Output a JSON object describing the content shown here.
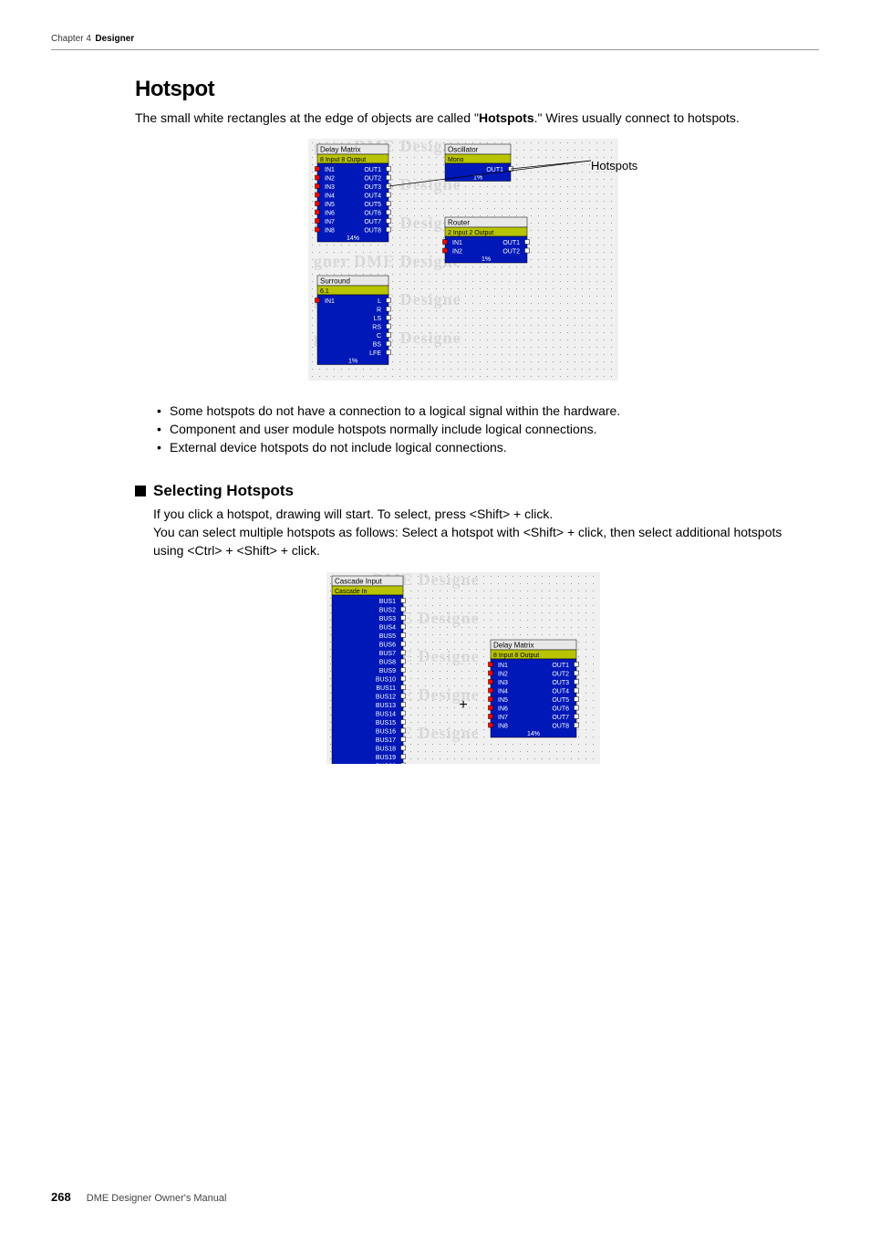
{
  "header": {
    "chapter_label": "Chapter 4",
    "chapter_name": "Designer"
  },
  "title": "Hotspot",
  "intro_pre": "The small white rectangles at the edge of objects are called \"",
  "intro_bold": "Hotspots",
  "intro_post": ".\" Wires usually connect to hotspots.",
  "callout_label": "Hotspots",
  "bullets": [
    "Some hotspots do not have a connection to a logical signal within the hardware.",
    "Component and user module hotspots normally include logical connections.",
    "External device hotspots do not include logical connections."
  ],
  "subheading": "Selecting Hotspots",
  "sub_body_1": "If you click a hotspot, drawing will start. To select, press <Shift> + click.",
  "sub_body_2": "You can select multiple hotspots as follows: Select a hotspot with <Shift> + click, then select additional hotspots using <Ctrl> + <Shift> + click.",
  "footer": {
    "page": "268",
    "manual": "DME Designer Owner's Manual"
  },
  "fig1": {
    "bg": "#f0f0f0",
    "watermark": "#d8d8d8",
    "panel_fill": "#0018b8",
    "panel_stroke": "#000",
    "title_bar": "#e8e8e8",
    "title_text": "#000",
    "subtitle_fill": "#b8c400",
    "port_text": "#ffffff",
    "hotspot_fill": "#ffffff",
    "hotspot_stroke": "#000",
    "sel_hotspot": "#ff0000",
    "delay_matrix": {
      "title": "Delay Matrix",
      "sub": "8 Input 8 Output",
      "ins": [
        "IN1",
        "IN2",
        "IN3",
        "IN4",
        "IN5",
        "IN6",
        "IN7",
        "IN8"
      ],
      "outs": [
        "OUT1",
        "OUT2",
        "OUT3",
        "OUT4",
        "OUT5",
        "OUT6",
        "OUT7",
        "OUT8"
      ],
      "pct": "14%"
    },
    "oscillator": {
      "title": "Oscillator",
      "sub": "Mono",
      "out": "OUT1",
      "pct": "1%"
    },
    "router": {
      "title": "Router",
      "sub": "2 Input 2 Output",
      "ins": [
        "IN1",
        "IN2"
      ],
      "outs": [
        "OUT1",
        "OUT2"
      ],
      "pct": "1%"
    },
    "surround": {
      "title": "Surround",
      "sub": "6.1",
      "in": "IN1",
      "outs": [
        "L",
        "R",
        "LS",
        "RS",
        "C",
        "BS",
        "LFE"
      ],
      "pct": "1%"
    }
  },
  "fig2": {
    "bg": "#f0f0f0",
    "watermark": "#d8d8d8",
    "panel_fill": "#0018b8",
    "title_bar": "#e8e8e8",
    "subtitle_fill": "#b8c400",
    "port_text": "#ffffff",
    "cascade": {
      "title": "Cascade Input",
      "sub": "Cascade In",
      "ports": [
        "BUS1",
        "BUS2",
        "BUS3",
        "BUS4",
        "BUS5",
        "BUS6",
        "BUS7",
        "BUS8",
        "BUS9",
        "BUS10",
        "BUS11",
        "BUS12",
        "BUS13",
        "BUS14",
        "BUS15",
        "BUS16",
        "BUS17",
        "BUS18",
        "BUS19",
        "BUS20",
        "BUS21"
      ]
    },
    "delay_matrix": {
      "title": "Delay Matrix",
      "sub": "8 Input 8 Output",
      "ins": [
        "IN1",
        "IN2",
        "IN3",
        "IN4",
        "IN5",
        "IN6",
        "IN7",
        "IN8"
      ],
      "outs": [
        "OUT1",
        "OUT2",
        "OUT3",
        "OUT4",
        "OUT5",
        "OUT6",
        "OUT7",
        "OUT8"
      ],
      "pct": "14%"
    }
  }
}
